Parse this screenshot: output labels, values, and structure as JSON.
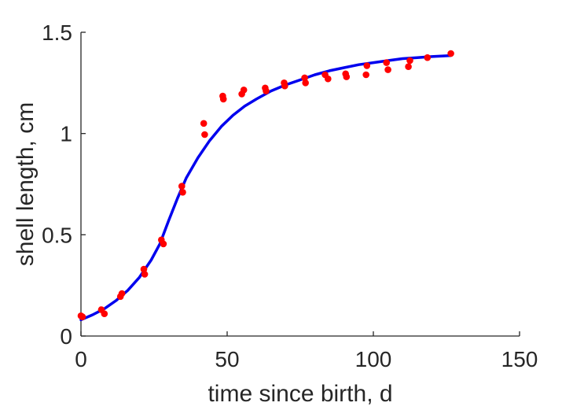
{
  "chart_data": {
    "type": "scatter",
    "title": "",
    "xlabel": "time since birth, d",
    "ylabel": "shell length, cm",
    "xlim": [
      0,
      150
    ],
    "ylim": [
      0,
      1.5
    ],
    "xticks": [
      "0",
      "50",
      "100",
      "150"
    ],
    "yticks": [
      "0",
      "0.5",
      "1",
      "1.5"
    ],
    "grid": false,
    "legend": "none",
    "colors": {
      "points": "#ff0000",
      "fit": "#0000ee",
      "axes": "#262626"
    },
    "series": [
      {
        "kind": "points",
        "x": [
          0,
          0.5,
          7,
          8,
          13.5,
          14,
          21.5,
          21.8,
          27.5,
          28.2,
          34.5,
          34.8,
          42,
          42.3,
          48.5,
          48.7,
          55,
          55.7,
          63,
          63.3,
          69.5,
          69.7,
          76.5,
          76.8,
          83.5,
          84.5,
          90.5,
          90.8,
          97.5,
          97.8,
          104.5,
          105,
          112,
          112.5,
          118.5,
          126.5
        ],
        "y": [
          0.1,
          0.095,
          0.13,
          0.11,
          0.195,
          0.21,
          0.33,
          0.305,
          0.475,
          0.455,
          0.74,
          0.71,
          1.05,
          0.995,
          1.185,
          1.17,
          1.195,
          1.215,
          1.225,
          1.21,
          1.25,
          1.235,
          1.275,
          1.25,
          1.29,
          1.27,
          1.295,
          1.28,
          1.29,
          1.335,
          1.35,
          1.315,
          1.33,
          1.36,
          1.375,
          1.395
        ]
      },
      {
        "kind": "line",
        "x": [
          0,
          4,
          8,
          12,
          16,
          20,
          24,
          27,
          30,
          33,
          36,
          40,
          44,
          48,
          52,
          56,
          60,
          65,
          70,
          75,
          80,
          85,
          90,
          95,
          100,
          105,
          110,
          115,
          120,
          126.5
        ],
        "y": [
          0.08,
          0.105,
          0.135,
          0.175,
          0.225,
          0.29,
          0.375,
          0.455,
          0.57,
          0.68,
          0.78,
          0.88,
          0.965,
          1.035,
          1.09,
          1.135,
          1.17,
          1.21,
          1.24,
          1.265,
          1.29,
          1.31,
          1.325,
          1.34,
          1.35,
          1.36,
          1.37,
          1.375,
          1.38,
          1.385
        ]
      }
    ]
  }
}
